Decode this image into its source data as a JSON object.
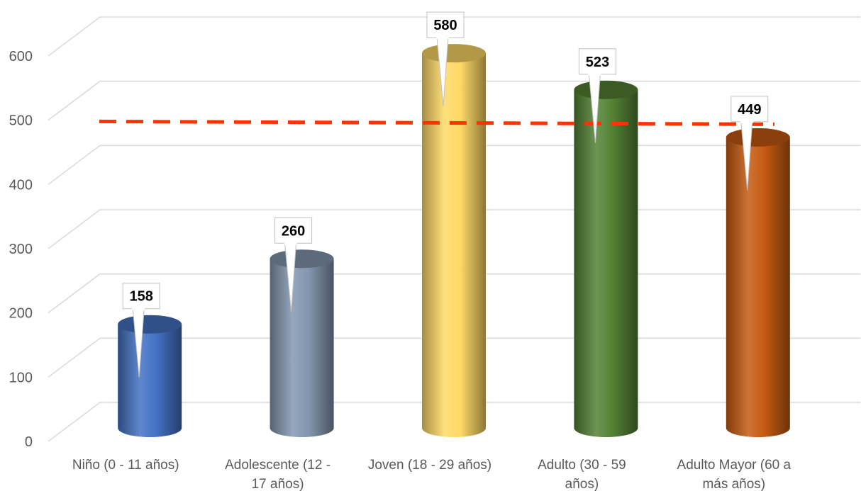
{
  "chart_data": {
    "type": "bar",
    "style": "3d-cylinder",
    "categories": [
      [
        "Niño (0 - 11 años)"
      ],
      [
        "Adolescente (12 -",
        "17 años)"
      ],
      [
        "Joven (18 - 29 años)"
      ],
      [
        "Adulto (30 - 59",
        "años)"
      ],
      [
        "Adulto Mayor (60 a",
        "más años)"
      ]
    ],
    "values": [
      158,
      260,
      580,
      523,
      449
    ],
    "data_labels": [
      "158",
      "260",
      "580",
      "523",
      "449"
    ],
    "colors": [
      "#4472C4",
      "#8497B0",
      "#FFD966",
      "#548235",
      "#C55A11"
    ],
    "ylim": [
      0,
      600
    ],
    "yticks": [
      "0",
      "100",
      "200",
      "300",
      "400",
      "500",
      "600"
    ],
    "average_line": {
      "value": 476,
      "style": "dashed",
      "color": "#FF3300"
    },
    "grid": true,
    "legend": "none"
  }
}
